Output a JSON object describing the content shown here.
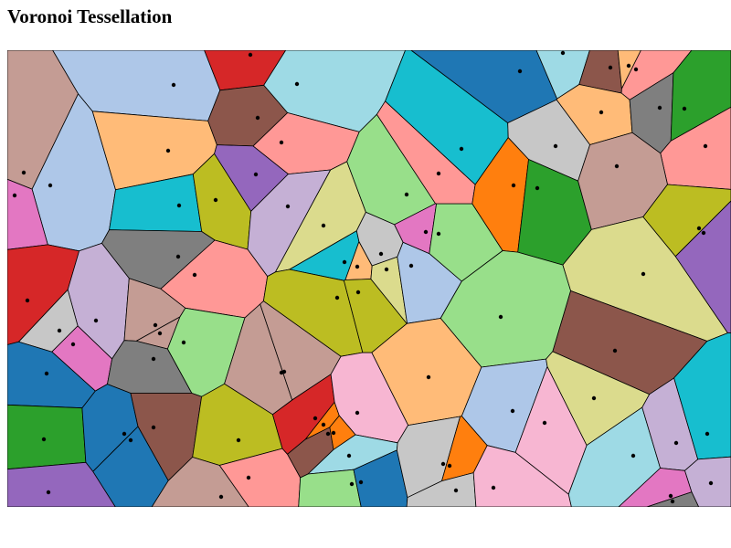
{
  "title": "Voronoi Tessellation",
  "diagram": {
    "type": "voronoi",
    "cell_border_color": "#000000",
    "site_color": "#000000",
    "palette": [
      "#1f77b4",
      "#aec7e8",
      "#ff7f0e",
      "#ffbb78",
      "#2ca02c",
      "#98df8a",
      "#d62728",
      "#ff9896",
      "#9467bd",
      "#c5b0d5",
      "#8c564b",
      "#c49c94",
      "#e377c2",
      "#f7b6d2",
      "#7f7f7f",
      "#c7c7c7",
      "#bcbd22",
      "#dbdb8d",
      "#17becf",
      "#9edae5"
    ]
  }
}
